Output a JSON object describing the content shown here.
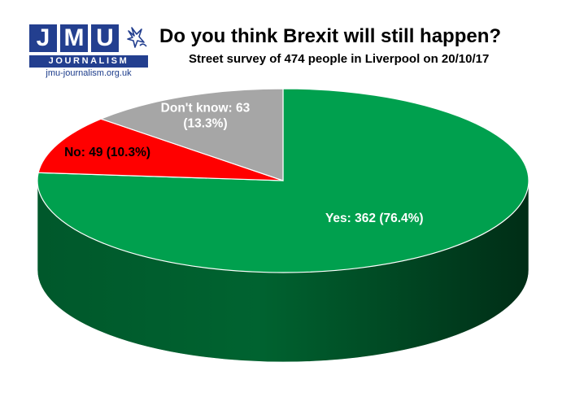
{
  "logo": {
    "letters": [
      "J",
      "M",
      "U"
    ],
    "subtitle": "JOURNALISM",
    "url": "jmu-journalism.org.uk",
    "brand_color": "#233f8f"
  },
  "header": {
    "title": "Do you think Brexit will still happen?",
    "subtitle": "Street survey of 474 people in Liverpool on 20/10/17"
  },
  "chart_data": {
    "type": "pie",
    "title": "Do you think Brexit will still happen?",
    "subtitle": "Street survey of 474 people in Liverpool on 20/10/17",
    "total": 474,
    "slices": [
      {
        "name": "Yes",
        "value": 362,
        "percent": 76.4,
        "color": "#00a04e",
        "label_lines": [
          "Yes: 362 (76.4%)"
        ],
        "label_color": "#ffffff"
      },
      {
        "name": "No",
        "value": 49,
        "percent": 10.3,
        "color": "#ff0000",
        "label_lines": [
          "No: 49 (10.3%)"
        ],
        "label_color": "#000000"
      },
      {
        "name": "Don't know",
        "value": 63,
        "percent": 13.3,
        "color": "#a6a6a6",
        "label_lines": [
          "Don't know: 63",
          "(13.3%)"
        ],
        "label_color": "#ffffff"
      }
    ]
  }
}
